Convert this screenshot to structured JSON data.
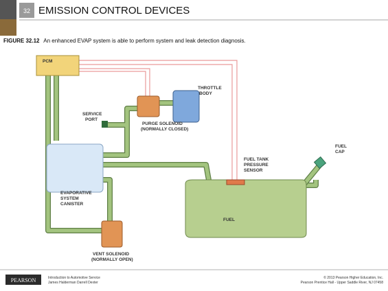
{
  "header": {
    "chapter": "32",
    "title": "EMISSION CONTROL DEVICES"
  },
  "caption": {
    "figure": "FIGURE 32.12",
    "text": "An enhanced EVAP system is able to perform system and leak detection diagnosis."
  },
  "labels": {
    "pcm": "PCM",
    "throttle_body": [
      "THROTTLE",
      "BODY"
    ],
    "service_port": [
      "SERVICE",
      "PORT"
    ],
    "purge_solenoid": [
      "PURGE SOLENOID",
      "(NORMALLY CLOSED)"
    ],
    "fuel_tank_pressure_sensor": [
      "FUEL TANK",
      "PRESSURE",
      "SENSOR"
    ],
    "fuel_cap": [
      "FUEL",
      "CAP"
    ],
    "canister": [
      "EVAPORATIVE",
      "SYSTEM",
      "CANISTER"
    ],
    "fuel": "FUEL",
    "vent_solenoid": [
      "VENT SOLENOID",
      "(NORMALLY OPEN)"
    ]
  },
  "footer": {
    "logo": "PEARSON",
    "book": "Introduction to Automotive Service",
    "authors": "James Halderman  Darrell Dexter",
    "copyright": "© 2013  Pearson Higher Education, Inc.",
    "publisher": "Pearson Prentice Hall - Upper Saddle River, NJ 07458"
  }
}
